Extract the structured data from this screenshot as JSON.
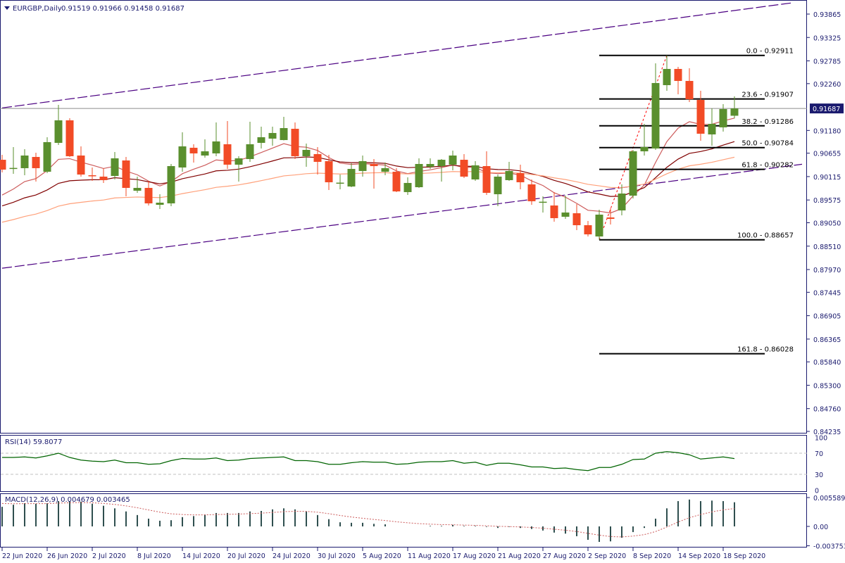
{
  "header": {
    "symbol": "EURGBP,Daily",
    "ohlc": "0.91519 0.91966 0.91458 0.91687",
    "menu_icon": "triangle-down-icon"
  },
  "colors": {
    "bull": "#5a8f2e",
    "bear": "#f24b26",
    "frame": "#1a1a6e",
    "ma_fast": "#cd5c5c",
    "ma_mid": "#800000",
    "ma_slow": "#ffa07a",
    "channel": "#4b0082",
    "rsi": "#006400",
    "macd_hist": "#2f4f4f",
    "macd_signal": "#cd5c5c"
  },
  "chart_data": [
    {
      "type": "candlestick",
      "title": "EURGBP,Daily",
      "ylim": [
        0.84235,
        0.93865
      ],
      "y_ticks": [
        "0.93865",
        "0.93325",
        "0.92785",
        "0.92260",
        "0.91180",
        "0.90655",
        "0.90115",
        "0.89575",
        "0.89050",
        "0.88510",
        "0.87970",
        "0.87445",
        "0.86905",
        "0.86365",
        "0.85840",
        "0.85300",
        "0.84760",
        "0.84235"
      ],
      "current_price": "0.91687",
      "x_ticks": [
        {
          "bar": 0,
          "label": "22 Jun 2020"
        },
        {
          "bar": 4,
          "label": "26 Jun 2020"
        },
        {
          "bar": 8,
          "label": "2 Jul 2020"
        },
        {
          "bar": 12,
          "label": "8 Jul 2020"
        },
        {
          "bar": 16,
          "label": "14 Jul 2020"
        },
        {
          "bar": 20,
          "label": "20 Jul 2020"
        },
        {
          "bar": 24,
          "label": "24 Jul 2020"
        },
        {
          "bar": 28,
          "label": "30 Jul 2020"
        },
        {
          "bar": 32,
          "label": "5 Aug 2020"
        },
        {
          "bar": 36,
          "label": "11 Aug 2020"
        },
        {
          "bar": 40,
          "label": "17 Aug 2020"
        },
        {
          "bar": 44,
          "label": "21 Aug 2020"
        },
        {
          "bar": 48,
          "label": "27 Aug 2020"
        },
        {
          "bar": 52,
          "label": "2 Sep 2020"
        },
        {
          "bar": 56,
          "label": "8 Sep 2020"
        },
        {
          "bar": 60,
          "label": "14 Sep 2020"
        },
        {
          "bar": 64,
          "label": "18 Sep 2020"
        }
      ],
      "ohlc": [
        [
          0.90503,
          0.90617,
          0.90211,
          0.90276
        ],
        [
          0.90309,
          0.90796,
          0.90179,
          0.90315
        ],
        [
          0.90309,
          0.90747,
          0.90146,
          0.90601
        ],
        [
          0.90568,
          0.90666,
          0.9,
          0.90309
        ],
        [
          0.90227,
          0.91023,
          0.90195,
          0.9091
        ],
        [
          0.90893,
          0.9177,
          0.90845,
          0.91413
        ],
        [
          0.91413,
          0.91462,
          0.90568,
          0.90585
        ],
        [
          0.90601,
          0.90812,
          0.90114,
          0.90162
        ],
        [
          0.90146,
          0.90325,
          0.90016,
          0.9014
        ],
        [
          0.90114,
          0.90309,
          0.89968,
          0.90033
        ],
        [
          0.9013,
          0.90682,
          0.90049,
          0.90536
        ],
        [
          0.90487,
          0.90568,
          0.89659,
          0.89854
        ],
        [
          0.89789,
          0.90114,
          0.8974,
          0.89854
        ],
        [
          0.89854,
          0.90016,
          0.89448,
          0.89497
        ],
        [
          0.89464,
          0.89708,
          0.89367,
          0.89513
        ],
        [
          0.89497,
          0.90406,
          0.89432,
          0.90357
        ],
        [
          0.90325,
          0.91137,
          0.90227,
          0.90812
        ],
        [
          0.9078,
          0.90861,
          0.90438,
          0.9065
        ],
        [
          0.90601,
          0.90974,
          0.90552,
          0.90698
        ],
        [
          0.9065,
          0.91364,
          0.90585,
          0.90926
        ],
        [
          0.90861,
          0.91397,
          0.90292,
          0.9039
        ],
        [
          0.9039,
          0.90585,
          0.9,
          0.90536
        ],
        [
          0.9052,
          0.91381,
          0.90455,
          0.90861
        ],
        [
          0.90893,
          0.91267,
          0.90763,
          0.91023
        ],
        [
          0.90991,
          0.91267,
          0.90828,
          0.91121
        ],
        [
          0.90958,
          0.91494,
          0.9095,
          0.91234
        ],
        [
          0.91218,
          0.91364,
          0.9052,
          0.90585
        ],
        [
          0.90585,
          0.90877,
          0.90341,
          0.90731
        ],
        [
          0.90634,
          0.90796,
          0.90162,
          0.90455
        ],
        [
          0.90471,
          0.90617,
          0.89805,
          0.89984
        ],
        [
          0.89968,
          0.90162,
          0.89822,
          0.89975
        ],
        [
          0.89886,
          0.90422,
          0.8987,
          0.90292
        ],
        [
          0.90244,
          0.90601,
          0.90114,
          0.90471
        ],
        [
          0.90406,
          0.9052,
          0.89838,
          0.90357
        ],
        [
          0.90227,
          0.90438,
          0.90146,
          0.90309
        ],
        [
          0.90227,
          0.90309,
          0.89757,
          0.89773
        ],
        [
          0.89757,
          0.90097,
          0.89692,
          0.89968
        ],
        [
          0.8987,
          0.90536,
          0.89854,
          0.90406
        ],
        [
          0.90341,
          0.90536,
          0.90292,
          0.90406
        ],
        [
          0.90357,
          0.9052,
          0.9,
          0.90503
        ],
        [
          0.9039,
          0.90715,
          0.9026,
          0.90601
        ],
        [
          0.90503,
          0.90634,
          0.90081,
          0.90114
        ],
        [
          0.90049,
          0.90471,
          0.90016,
          0.90374
        ],
        [
          0.90357,
          0.90698,
          0.89692,
          0.8974
        ],
        [
          0.89708,
          0.90162,
          0.89432,
          0.90114
        ],
        [
          0.90033,
          0.90455,
          0.90016,
          0.90244
        ],
        [
          0.90195,
          0.9039,
          0.89822,
          0.89984
        ],
        [
          0.89935,
          0.90049,
          0.89464,
          0.89546
        ],
        [
          0.89529,
          0.89659,
          0.89286,
          0.89535
        ],
        [
          0.89448,
          0.89757,
          0.89074,
          0.89156
        ],
        [
          0.89188,
          0.89675,
          0.89139,
          0.89286
        ],
        [
          0.89269,
          0.8948,
          0.88879,
          0.88993
        ],
        [
          0.88993,
          0.89091,
          0.88733,
          0.88782
        ],
        [
          0.88733,
          0.8935,
          0.88657,
          0.89237
        ],
        [
          0.89172,
          0.89383,
          0.89009,
          0.89139
        ],
        [
          0.89334,
          0.89935,
          0.89221,
          0.89724
        ],
        [
          0.89675,
          0.90731,
          0.8961,
          0.90698
        ],
        [
          0.90698,
          0.91332,
          0.90601,
          0.90796
        ],
        [
          0.90763,
          0.92728,
          0.90731,
          0.92274
        ],
        [
          0.92225,
          0.92911,
          0.92095,
          0.92599
        ],
        [
          0.92599,
          0.92647,
          0.92014,
          0.92322
        ],
        [
          0.92322,
          0.92615,
          0.91835,
          0.919
        ],
        [
          0.91884,
          0.92095,
          0.90942,
          0.91104
        ],
        [
          0.91088,
          0.91689,
          0.90828,
          0.91332
        ],
        [
          0.91251,
          0.91787,
          0.91153,
          0.91673
        ],
        [
          0.91519,
          0.91966,
          0.91458,
          0.91687
        ]
      ],
      "channel": [
        {
          "from": [
            0,
            0.917
          ],
          "to": [
            70,
            0.9412
          ]
        },
        {
          "from": [
            0,
            0.88
          ],
          "to": [
            71,
            0.904
          ]
        }
      ],
      "fibonacci": {
        "from_bar": 53,
        "to_bar": 59,
        "levels": [
          {
            "label": "0.0 - 0.92911",
            "price": 0.92911
          },
          {
            "label": "23.6 - 0.91907",
            "price": 0.91907
          },
          {
            "label": "38.2 - 0.91286",
            "price": 0.91286
          },
          {
            "label": "50.0 - 0.90784",
            "price": 0.90784
          },
          {
            "label": "61.8 - 0.90282",
            "price": 0.90282
          },
          {
            "label": "100.0 - 0.88657",
            "price": 0.88657
          },
          {
            "label": "161.8 - 0.86028",
            "price": 0.86028
          }
        ]
      }
    },
    {
      "type": "line",
      "title": "RSI(14) 59.8077",
      "ylim": [
        0,
        100
      ],
      "y_ticks": [
        "100",
        "70",
        "30",
        "0"
      ],
      "levels": [
        70,
        30
      ],
      "values": [
        62,
        62,
        63,
        61,
        65,
        70,
        62,
        57,
        55,
        54,
        57,
        52,
        52,
        49,
        50,
        56,
        60,
        59,
        59,
        61,
        56,
        57,
        60,
        61,
        62,
        63,
        56,
        56,
        54,
        49,
        49,
        52,
        54,
        53,
        53,
        49,
        50,
        53,
        54,
        54,
        56,
        51,
        53,
        47,
        51,
        51,
        48,
        44,
        44,
        41,
        42,
        39,
        37,
        43,
        43,
        49,
        58,
        59,
        70,
        73,
        71,
        67,
        59,
        61,
        63,
        59.8077
      ]
    },
    {
      "type": "bar",
      "title": "MACD(12,26,9) 0.004679 0.003465",
      "ylim": [
        -0.003753,
        0.005589
      ],
      "y_ticks": [
        "0.005589",
        "0.00",
        "-0.003753"
      ],
      "histogram": [
        0.0038,
        0.0042,
        0.0045,
        0.0044,
        0.0045,
        0.0049,
        0.0049,
        0.0048,
        0.0044,
        0.004,
        0.0035,
        0.0029,
        0.0022,
        0.0015,
        0.0011,
        0.0012,
        0.0018,
        0.002,
        0.0023,
        0.0026,
        0.0026,
        0.0026,
        0.0029,
        0.003,
        0.0033,
        0.0035,
        0.0033,
        0.0029,
        0.0022,
        0.0014,
        0.0008,
        0.0007,
        0.0007,
        0.0005,
        0.0004,
        0.0,
        0.0,
        0.0,
        0.0001,
        0.0001,
        0.0003,
        0.0001,
        0.0001,
        -0.0001,
        -0.0003,
        -0.0001,
        -0.0003,
        -0.0005,
        -0.0008,
        -0.0012,
        -0.0014,
        -0.0019,
        -0.0026,
        -0.003,
        -0.0029,
        -0.0022,
        -0.0011,
        -0.0003,
        0.0015,
        0.0035,
        0.0049,
        0.0052,
        0.0049,
        0.005,
        0.0049,
        0.004679
      ],
      "signal_last": 0.003465
    }
  ]
}
